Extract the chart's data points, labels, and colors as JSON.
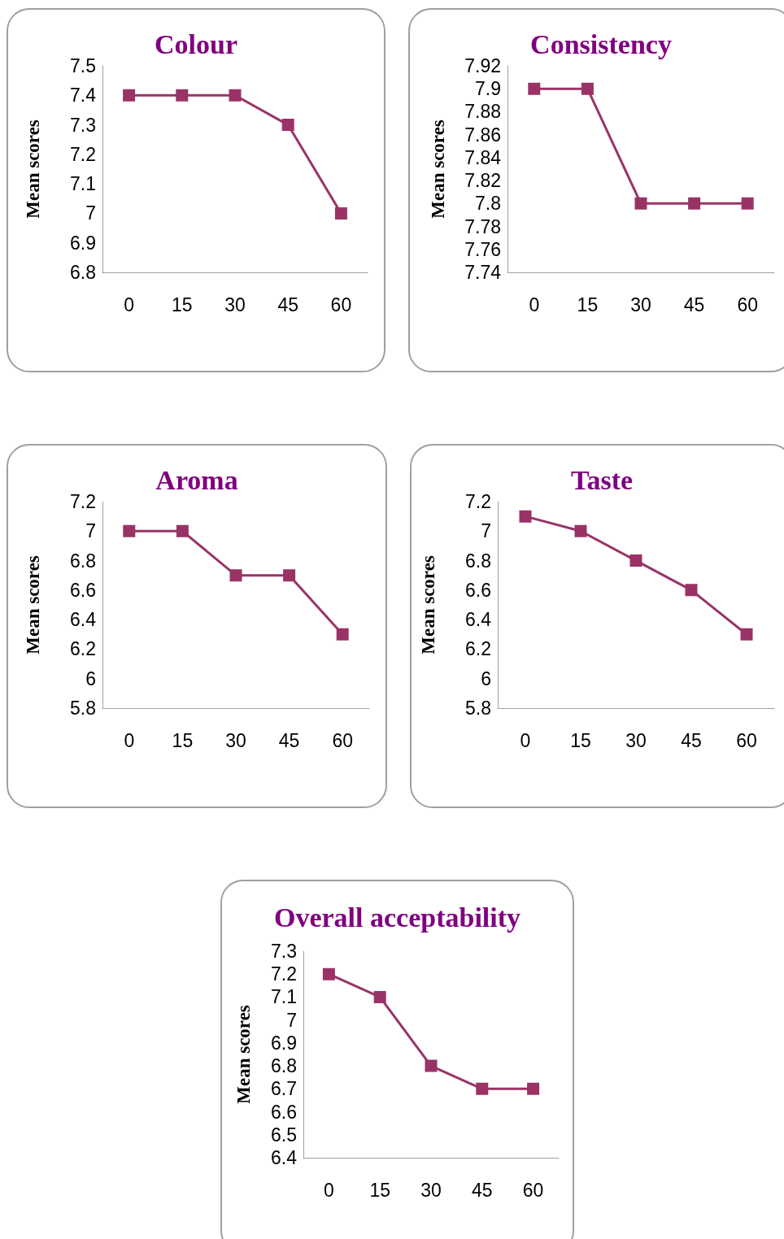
{
  "chart_data": [
    {
      "type": "line",
      "title": "Colour",
      "ylabel": "Mean scores",
      "categories": [
        "0",
        "15",
        "30",
        "45",
        "60"
      ],
      "series": [
        {
          "color": "#993366",
          "values": [
            7.4,
            7.4,
            7.4,
            7.3,
            7.0
          ]
        }
      ],
      "ylim": [
        6.8,
        7.5
      ],
      "yticks": [
        6.8,
        6.9,
        7,
        7.1,
        7.2,
        7.3,
        7.4,
        7.5
      ],
      "marker": "square"
    },
    {
      "type": "line",
      "title": "Consistency",
      "ylabel": "Mean scores",
      "categories": [
        "0",
        "15",
        "30",
        "45",
        "60"
      ],
      "series": [
        {
          "color": "#993366",
          "values": [
            7.9,
            7.9,
            7.8,
            7.8,
            7.8
          ]
        }
      ],
      "ylim": [
        7.74,
        7.92
      ],
      "yticks": [
        7.74,
        7.76,
        7.78,
        7.8,
        7.82,
        7.84,
        7.86,
        7.88,
        7.9,
        7.92
      ],
      "marker": "square"
    },
    {
      "type": "line",
      "title": "Aroma",
      "ylabel": "Mean scores",
      "categories": [
        "0",
        "15",
        "30",
        "45",
        "60"
      ],
      "series": [
        {
          "color": "#993366",
          "values": [
            7.0,
            7.0,
            6.7,
            6.7,
            6.3
          ]
        }
      ],
      "ylim": [
        5.8,
        7.2
      ],
      "yticks": [
        5.8,
        6,
        6.2,
        6.4,
        6.6,
        6.8,
        7,
        7.2
      ],
      "marker": "square"
    },
    {
      "type": "line",
      "title": "Taste",
      "ylabel": "Mean scores",
      "categories": [
        "0",
        "15",
        "30",
        "45",
        "60"
      ],
      "series": [
        {
          "color": "#993366",
          "values": [
            7.1,
            7.0,
            6.8,
            6.6,
            6.3
          ]
        }
      ],
      "ylim": [
        5.8,
        7.2
      ],
      "yticks": [
        5.8,
        6,
        6.2,
        6.4,
        6.6,
        6.8,
        7,
        7.2
      ],
      "marker": "square"
    },
    {
      "type": "line",
      "title": "Overall acceptability",
      "ylabel": "Mean scores",
      "categories": [
        "0",
        "15",
        "30",
        "45",
        "60"
      ],
      "series": [
        {
          "color": "#993366",
          "values": [
            7.2,
            7.1,
            6.8,
            6.7,
            6.7
          ]
        }
      ],
      "ylim": [
        6.4,
        7.3
      ],
      "yticks": [
        6.4,
        6.5,
        6.6,
        6.7,
        6.8,
        6.9,
        7,
        7.1,
        7.2,
        7.3
      ],
      "marker": "square"
    }
  ]
}
